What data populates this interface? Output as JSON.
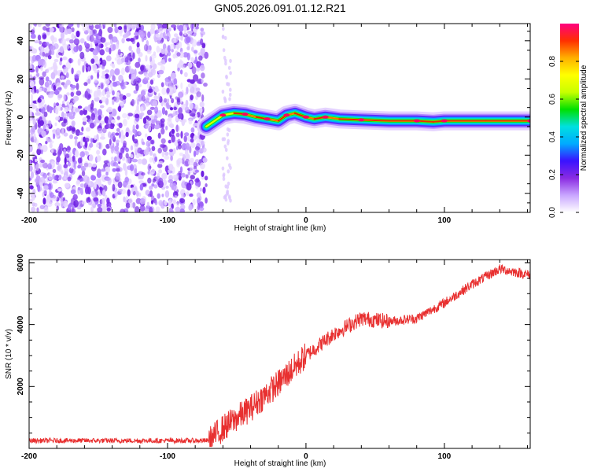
{
  "title": "GN05.2026.091.01.12.R21",
  "chart_data": [
    {
      "type": "heatmap",
      "xlabel": "Height of straight line (km)",
      "ylabel": "Frequency (Hz)",
      "xlim": [
        -200,
        162
      ],
      "ylim": [
        -50,
        49
      ],
      "xticks": [
        -200,
        -100,
        0,
        100
      ],
      "yticks": [
        -40,
        -20,
        0,
        20,
        40
      ],
      "noise_region_x": [
        -200,
        -72
      ],
      "signal_start_x": -72,
      "ridge": [
        {
          "x": -72,
          "y": -5
        },
        {
          "x": -66,
          "y": -2
        },
        {
          "x": -60,
          "y": 1
        },
        {
          "x": -52,
          "y": 2
        },
        {
          "x": -44,
          "y": 1.5
        },
        {
          "x": -36,
          "y": 0
        },
        {
          "x": -28,
          "y": -1
        },
        {
          "x": -20,
          "y": -2
        },
        {
          "x": -14,
          "y": 1
        },
        {
          "x": -8,
          "y": 2
        },
        {
          "x": 0,
          "y": 0
        },
        {
          "x": 6,
          "y": -1
        },
        {
          "x": 14,
          "y": 0
        },
        {
          "x": 24,
          "y": -1
        },
        {
          "x": 40,
          "y": -1.5
        },
        {
          "x": 60,
          "y": -2
        },
        {
          "x": 80,
          "y": -2
        },
        {
          "x": 92,
          "y": -2.5
        },
        {
          "x": 100,
          "y": -2
        },
        {
          "x": 130,
          "y": -2
        },
        {
          "x": 162,
          "y": -2
        }
      ],
      "colorbar": {
        "label": "Normalized spectral amplitude",
        "ticks": [
          0.0,
          0.2,
          0.4,
          0.6,
          0.8
        ],
        "range": [
          0,
          1
        ],
        "colors": [
          "#ffffff",
          "#c9a6ff",
          "#8a2be2",
          "#3a12ff",
          "#00aaff",
          "#00e0e0",
          "#00e000",
          "#c8ff00",
          "#ffff00",
          "#ffb000",
          "#ff3000",
          "#ff0080"
        ]
      }
    },
    {
      "type": "line",
      "xlabel": "Height of straight line (km)",
      "ylabel": "SNR (10 * v/v)",
      "xlim": [
        -200,
        162
      ],
      "ylim": [
        0,
        6100
      ],
      "xticks": [
        -200,
        -100,
        0,
        100
      ],
      "yticks": [
        2000,
        4000,
        6000
      ],
      "color": "#e83030",
      "trend": [
        {
          "x": -200,
          "y": 250
        },
        {
          "x": -70,
          "y": 250
        },
        {
          "x": -60,
          "y": 650
        },
        {
          "x": -40,
          "y": 1300
        },
        {
          "x": -20,
          "y": 2100
        },
        {
          "x": 0,
          "y": 3000
        },
        {
          "x": 20,
          "y": 3700
        },
        {
          "x": 40,
          "y": 4200
        },
        {
          "x": 60,
          "y": 4100
        },
        {
          "x": 80,
          "y": 4200
        },
        {
          "x": 100,
          "y": 4700
        },
        {
          "x": 120,
          "y": 5300
        },
        {
          "x": 140,
          "y": 5800
        },
        {
          "x": 162,
          "y": 5600
        }
      ]
    }
  ]
}
